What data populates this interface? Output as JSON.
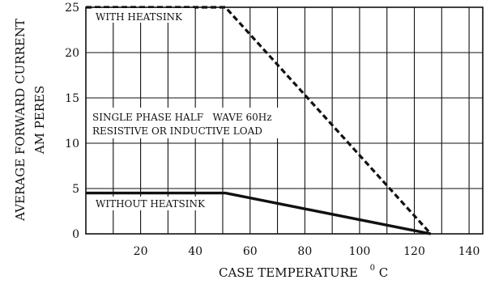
{
  "chart_data": {
    "type": "line",
    "title": "",
    "xlabel": "CASE TEMPERATURE",
    "xlabel_unit_superscript": "0",
    "xlabel_unit": "C",
    "ylabel_line1": "AVERAGE FORWARD CURRENT",
    "ylabel_line2": "AM PERES",
    "xlim": [
      0,
      145
    ],
    "ylim": [
      0,
      25
    ],
    "x_ticks": [
      20,
      40,
      60,
      80,
      100,
      120,
      140
    ],
    "x_tick_labels": [
      "20",
      "40",
      "60",
      "80",
      "100",
      "120",
      "140"
    ],
    "y_ticks": [
      0,
      5,
      10,
      15,
      20,
      25
    ],
    "y_tick_labels": [
      "0",
      "5",
      "10",
      "15",
      "20",
      "25"
    ],
    "x_minor_step": 10,
    "y_minor_step": 5,
    "grid": true,
    "series": [
      {
        "name": "WITH HEATSINK",
        "style": "dashed",
        "x": [
          0,
          51,
          126
        ],
        "y": [
          25,
          25,
          0
        ]
      },
      {
        "name": "WITHOUT HEATSINK",
        "style": "solid",
        "x": [
          0,
          51,
          126
        ],
        "y": [
          4.5,
          4.5,
          0
        ]
      }
    ],
    "annotations": [
      "SINGLE PHASE HALF   WAVE 60Hz",
      "RESISTIVE OR INDUCTIVE LOAD"
    ],
    "colors": {
      "line": "#111111",
      "grid": "#111111",
      "background": "#ffffff"
    }
  }
}
